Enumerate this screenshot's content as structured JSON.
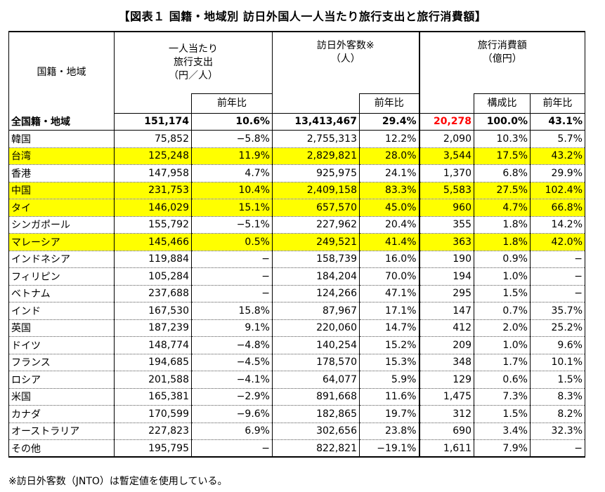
{
  "title": "【図表１ 国籍・地域別 訪日外国人一人当たり旅行支出と旅行消費額】",
  "headers": {
    "country": "国籍・地域",
    "spend_per_person": [
      "一人当たり",
      "旅行支出",
      "（円／人）"
    ],
    "visitors": [
      "訪日外客数※",
      "（人）"
    ],
    "consumption": [
      "旅行消費額",
      "（億円）"
    ],
    "yoy": "前年比",
    "share": "構成比"
  },
  "highlight_color": "#ffff00",
  "total_consumption_color": "#ff0000",
  "rows": [
    {
      "name": "全国籍・地域",
      "spend": "151,174",
      "spend_yoy": "10.6%",
      "visitors": "13,413,467",
      "visitors_yoy": "29.4%",
      "consumption": "20,278",
      "share": "100.0%",
      "cons_yoy": "43.1%",
      "total": true,
      "highlight": false
    },
    {
      "name": "韓国",
      "spend": "75,852",
      "spend_yoy": "−5.8%",
      "visitors": "2,755,313",
      "visitors_yoy": "12.2%",
      "consumption": "2,090",
      "share": "10.3%",
      "cons_yoy": "5.7%",
      "highlight": false
    },
    {
      "name": "台湾",
      "spend": "125,248",
      "spend_yoy": "11.9%",
      "visitors": "2,829,821",
      "visitors_yoy": "28.0%",
      "consumption": "3,544",
      "share": "17.5%",
      "cons_yoy": "43.2%",
      "highlight": true
    },
    {
      "name": "香港",
      "spend": "147,958",
      "spend_yoy": "4.7%",
      "visitors": "925,975",
      "visitors_yoy": "24.1%",
      "consumption": "1,370",
      "share": "6.8%",
      "cons_yoy": "29.9%",
      "highlight": false
    },
    {
      "name": "中国",
      "spend": "231,753",
      "spend_yoy": "10.4%",
      "visitors": "2,409,158",
      "visitors_yoy": "83.3%",
      "consumption": "5,583",
      "share": "27.5%",
      "cons_yoy": "102.4%",
      "highlight": true
    },
    {
      "name": "タイ",
      "spend": "146,029",
      "spend_yoy": "15.1%",
      "visitors": "657,570",
      "visitors_yoy": "45.0%",
      "consumption": "960",
      "share": "4.7%",
      "cons_yoy": "66.8%",
      "highlight": true
    },
    {
      "name": "シンガポール",
      "spend": "155,792",
      "spend_yoy": "−5.1%",
      "visitors": "227,962",
      "visitors_yoy": "20.4%",
      "consumption": "355",
      "share": "1.8%",
      "cons_yoy": "14.2%",
      "highlight": false
    },
    {
      "name": "マレーシア",
      "spend": "145,466",
      "spend_yoy": "0.5%",
      "visitors": "249,521",
      "visitors_yoy": "41.4%",
      "consumption": "363",
      "share": "1.8%",
      "cons_yoy": "42.0%",
      "highlight": true
    },
    {
      "name": "インドネシア",
      "spend": "119,884",
      "spend_yoy": "−",
      "visitors": "158,739",
      "visitors_yoy": "16.0%",
      "consumption": "190",
      "share": "0.9%",
      "cons_yoy": "−",
      "highlight": false
    },
    {
      "name": "フィリピン",
      "spend": "105,284",
      "spend_yoy": "−",
      "visitors": "184,204",
      "visitors_yoy": "70.0%",
      "consumption": "194",
      "share": "1.0%",
      "cons_yoy": "−",
      "highlight": false
    },
    {
      "name": "ベトナム",
      "spend": "237,688",
      "spend_yoy": "−",
      "visitors": "124,266",
      "visitors_yoy": "47.1%",
      "consumption": "295",
      "share": "1.5%",
      "cons_yoy": "−",
      "highlight": false
    },
    {
      "name": "インド",
      "spend": "167,530",
      "spend_yoy": "15.8%",
      "visitors": "87,967",
      "visitors_yoy": "17.1%",
      "consumption": "147",
      "share": "0.7%",
      "cons_yoy": "35.7%",
      "highlight": false
    },
    {
      "name": "英国",
      "spend": "187,239",
      "spend_yoy": "9.1%",
      "visitors": "220,060",
      "visitors_yoy": "14.7%",
      "consumption": "412",
      "share": "2.0%",
      "cons_yoy": "25.2%",
      "highlight": false
    },
    {
      "name": "ドイツ",
      "spend": "148,774",
      "spend_yoy": "−4.8%",
      "visitors": "140,254",
      "visitors_yoy": "15.2%",
      "consumption": "209",
      "share": "1.0%",
      "cons_yoy": "9.6%",
      "highlight": false
    },
    {
      "name": "フランス",
      "spend": "194,685",
      "spend_yoy": "−4.5%",
      "visitors": "178,570",
      "visitors_yoy": "15.3%",
      "consumption": "348",
      "share": "1.7%",
      "cons_yoy": "10.1%",
      "highlight": false
    },
    {
      "name": "ロシア",
      "spend": "201,588",
      "spend_yoy": "−4.1%",
      "visitors": "64,077",
      "visitors_yoy": "5.9%",
      "consumption": "129",
      "share": "0.6%",
      "cons_yoy": "1.5%",
      "highlight": false
    },
    {
      "name": "米国",
      "spend": "165,381",
      "spend_yoy": "−2.9%",
      "visitors": "891,668",
      "visitors_yoy": "11.6%",
      "consumption": "1,475",
      "share": "7.3%",
      "cons_yoy": "8.3%",
      "highlight": false
    },
    {
      "name": "カナダ",
      "spend": "170,599",
      "spend_yoy": "−9.6%",
      "visitors": "182,865",
      "visitors_yoy": "19.7%",
      "consumption": "312",
      "share": "1.5%",
      "cons_yoy": "8.2%",
      "highlight": false
    },
    {
      "name": "オーストラリア",
      "spend": "227,823",
      "spend_yoy": "6.9%",
      "visitors": "302,656",
      "visitors_yoy": "23.8%",
      "consumption": "690",
      "share": "3.4%",
      "cons_yoy": "32.3%",
      "highlight": false
    },
    {
      "name": "その他",
      "spend": "195,795",
      "spend_yoy": "−",
      "visitors": "822,821",
      "visitors_yoy": "−19.1%",
      "consumption": "1,611",
      "share": "7.9%",
      "cons_yoy": "−",
      "highlight": false
    }
  ],
  "footnote": "※訪日外客数（JNTO）は暫定値を使用している。"
}
